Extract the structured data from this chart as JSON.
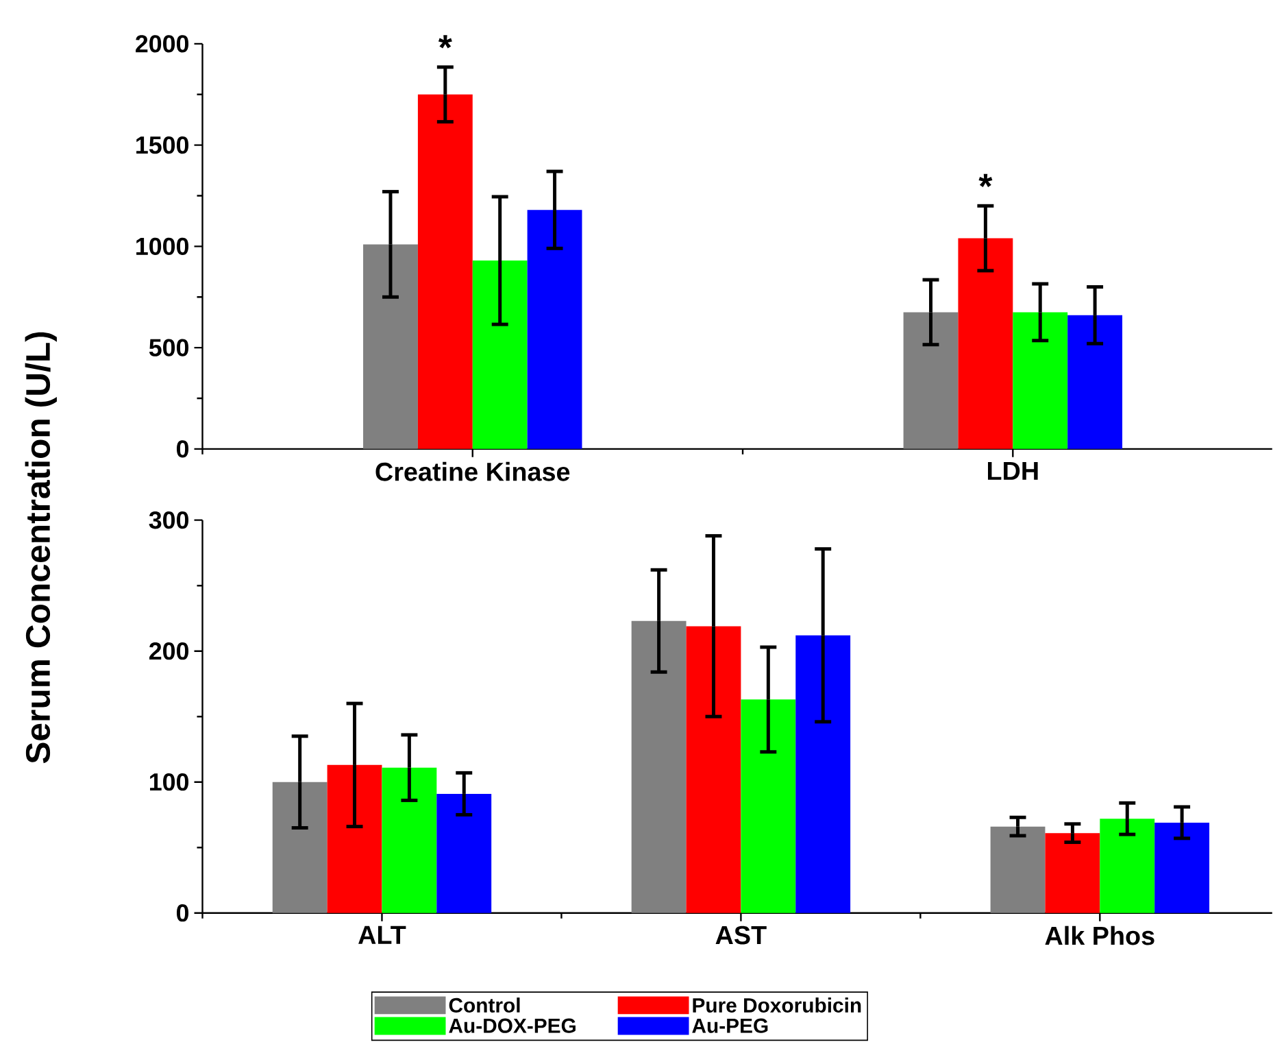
{
  "chart_data": [
    {
      "type": "bar",
      "ylabel": "Serum Concentration (U/L)",
      "categories": [
        "Creatine Kinase",
        "LDH"
      ],
      "ylim": [
        0,
        2000
      ],
      "yticks": [
        0,
        500,
        1000,
        1500,
        2000
      ],
      "series": [
        {
          "color": "#808080",
          "values": [
            1010,
            675
          ],
          "errors": [
            260,
            160
          ]
        },
        {
          "color": "#ff0000",
          "values": [
            1750,
            1040
          ],
          "errors": [
            135,
            160
          ]
        },
        {
          "color": "#00ff00",
          "values": [
            930,
            675
          ],
          "errors": [
            315,
            140
          ]
        },
        {
          "color": "#0000ff",
          "values": [
            1180,
            660
          ],
          "errors": [
            190,
            140
          ]
        }
      ],
      "annotations": [
        {
          "text": "*",
          "x": "Creatine Kinase",
          "y": 1750
        },
        {
          "text": "*",
          "x": "LDH",
          "y": 1040
        }
      ]
    },
    {
      "type": "bar",
      "categories": [
        "ALT",
        "AST",
        "Alk Phos"
      ],
      "ylim": [
        0,
        300
      ],
      "yticks": [
        0,
        100,
        200,
        300
      ],
      "legend": "bottom",
      "series": [
        {
          "name": "Control",
          "color": "#808080",
          "values": [
            100,
            223,
            66
          ],
          "errors": [
            35,
            39,
            7
          ]
        },
        {
          "name": "Pure Doxorubicin",
          "color": "#ff0000",
          "values": [
            113,
            219,
            61
          ],
          "errors": [
            47,
            69,
            7
          ]
        },
        {
          "name": "Au-DOX-PEG",
          "color": "#00ff00",
          "values": [
            111,
            163,
            72
          ],
          "errors": [
            25,
            40,
            12
          ]
        },
        {
          "name": "Au-PEG",
          "color": "#0000ff",
          "values": [
            91,
            212,
            69
          ],
          "errors": [
            16,
            66,
            12
          ]
        }
      ]
    }
  ]
}
